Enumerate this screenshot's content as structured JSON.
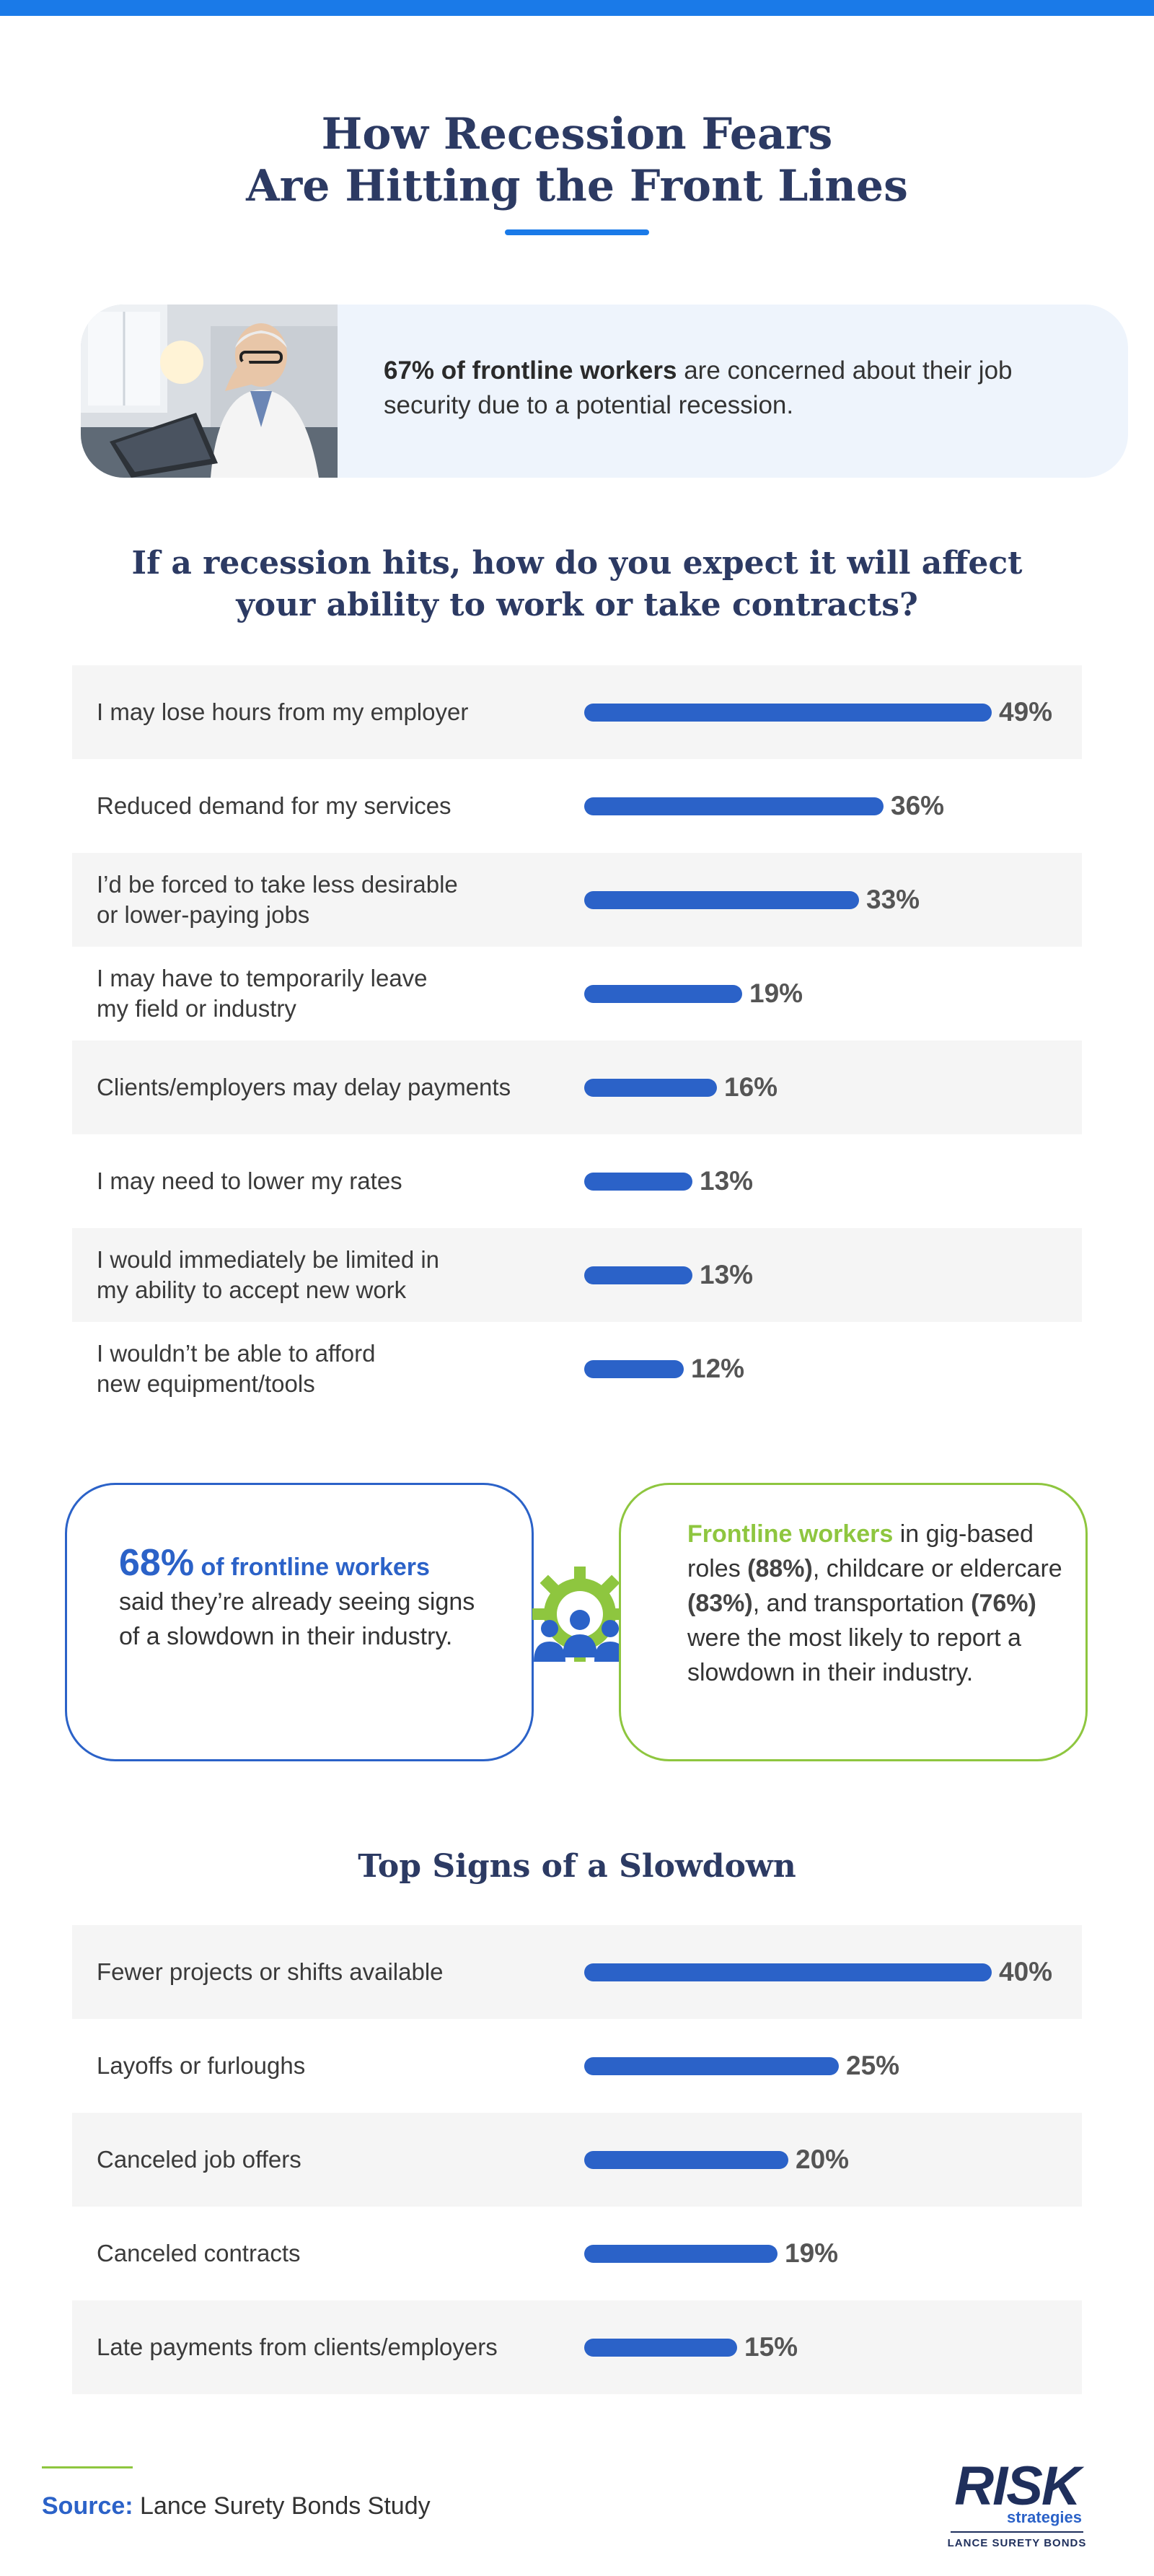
{
  "title": {
    "line1": "How Recession Fears",
    "line2": "Are Hitting the Front Lines"
  },
  "stat_card": {
    "highlight": "67% of frontline workers",
    "rest": " are concerned about their job security due to a potential recession."
  },
  "colors": {
    "accent": "#1a7ae8",
    "bar": "#2b62c8",
    "green": "#8ec63f",
    "heading": "#2c3a63"
  },
  "chart_data": [
    {
      "type": "bar",
      "orientation": "horizontal",
      "title": "If a recession hits, how do you expect it will affect your ability to work or take contracts?",
      "title_line1": "If a recession hits, how do you expect it will affect",
      "title_line2": "your ability to work or take contracts?",
      "categories": [
        "I may lose hours from my employer",
        "Reduced demand for my services",
        "I’d be forced to take less desirable\nor lower-paying jobs",
        "I may have to temporarily leave\nmy field or industry",
        "Clients/employers may delay payments",
        "I may need to lower my rates",
        "I would immediately be limited in\nmy ability to accept new work",
        "I wouldn’t be able to afford\nnew equipment/tools"
      ],
      "values": [
        49,
        36,
        33,
        19,
        16,
        13,
        13,
        12
      ],
      "value_labels": [
        "49%",
        "36%",
        "33%",
        "19%",
        "16%",
        "13%",
        "13%",
        "12%"
      ],
      "unit": "%",
      "xlim": [
        0,
        49
      ]
    },
    {
      "type": "bar",
      "orientation": "horizontal",
      "title": "Top Signs of a Slowdown",
      "categories": [
        "Fewer projects or shifts available",
        "Layoffs or furloughs",
        "Canceled job offers",
        "Canceled contracts",
        "Late payments from clients/employers"
      ],
      "values": [
        40,
        25,
        20,
        19,
        15
      ],
      "value_labels": [
        "40%",
        "25%",
        "20%",
        "19%",
        "15%"
      ],
      "unit": "%",
      "xlim": [
        0,
        40
      ]
    }
  ],
  "callout_left": {
    "number": "68%",
    "highlight": " of frontline workers",
    "rest": "said they’re already seeing signs of a slowdown in their industry."
  },
  "callout_right": {
    "highlight": "Frontline workers",
    "t1": " in gig-based roles ",
    "p1": "(88%)",
    "t2": ", childcare or eldercare ",
    "p2": "(83%)",
    "t3": ", and transportation ",
    "p3": "(76%)",
    "t4": " were the most likely to report a slowdown in their industry."
  },
  "source": {
    "label": "Source:",
    "text": " Lance Surety Bonds Study"
  },
  "logo": {
    "main": "RISK",
    "sub": "strategies",
    "tagline": "LANCE SURETY BONDS"
  }
}
